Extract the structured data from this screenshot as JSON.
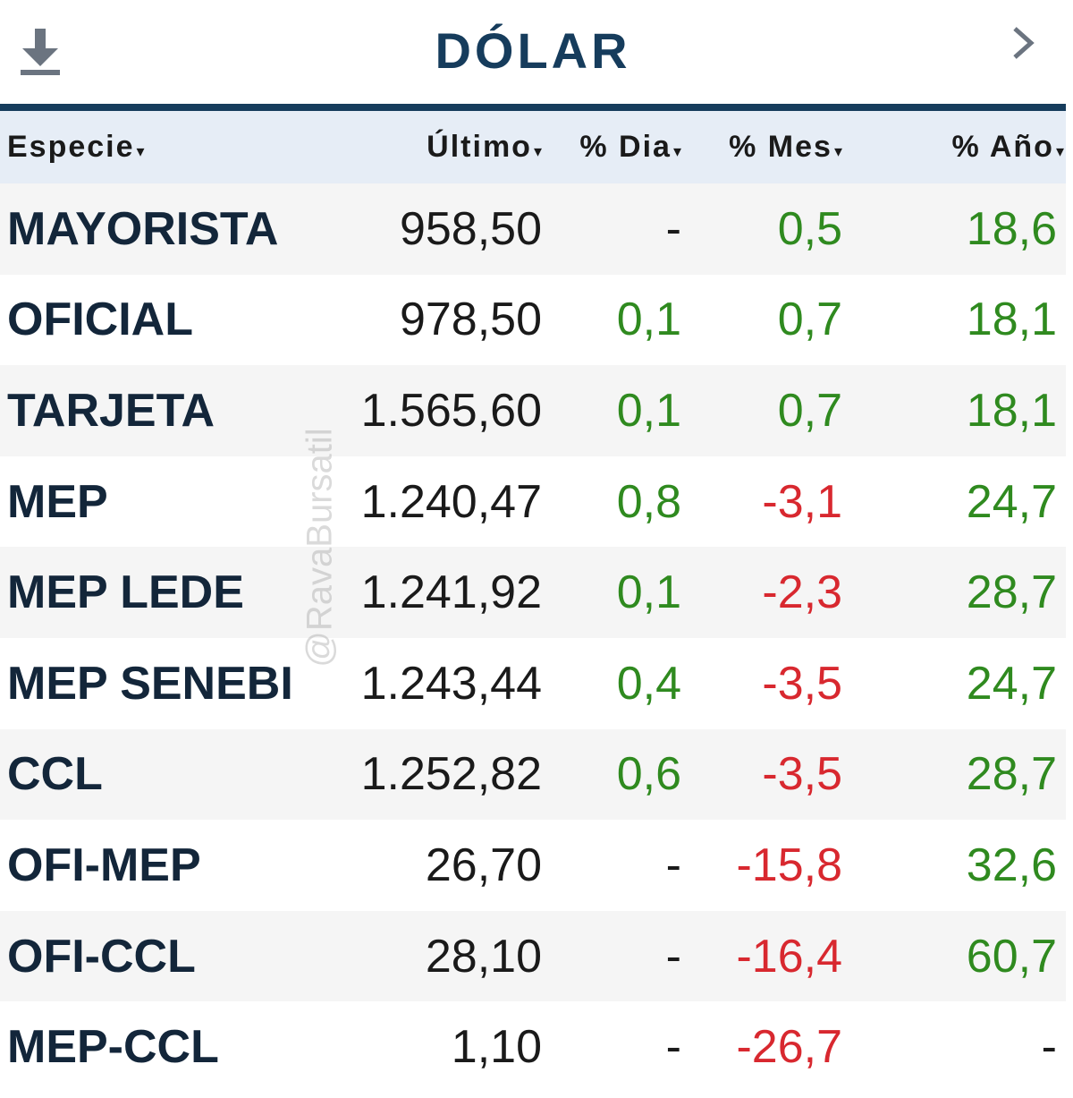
{
  "header": {
    "title": "DÓLAR",
    "download_icon": "download-icon",
    "next_icon": "chevron-right-icon"
  },
  "columns": {
    "especie": "Especie",
    "ultimo": "Último",
    "dia": "% Dia",
    "mes": "% Mes",
    "anio": "% Año",
    "sort_arrow": "▾"
  },
  "rows": [
    {
      "name": "MAYORISTA",
      "last": "958,50",
      "day": "-",
      "month": "0,5",
      "year": "18,6"
    },
    {
      "name": "OFICIAL",
      "last": "978,50",
      "day": "0,1",
      "month": "0,7",
      "year": "18,1"
    },
    {
      "name": "TARJETA",
      "last": "1.565,60",
      "day": "0,1",
      "month": "0,7",
      "year": "18,1"
    },
    {
      "name": "MEP",
      "last": "1.240,47",
      "day": "0,8",
      "month": "-3,1",
      "year": "24,7"
    },
    {
      "name": "MEP LEDE",
      "last": "1.241,92",
      "day": "0,1",
      "month": "-2,3",
      "year": "28,7"
    },
    {
      "name": "MEP SENEBI",
      "last": "1.243,44",
      "day": "0,4",
      "month": "-3,5",
      "year": "24,7"
    },
    {
      "name": "CCL",
      "last": "1.252,82",
      "day": "0,6",
      "month": "-3,5",
      "year": "28,7"
    },
    {
      "name": "OFI-MEP",
      "last": "26,70",
      "day": "-",
      "month": "-15,8",
      "year": "32,6"
    },
    {
      "name": "OFI-CCL",
      "last": "28,10",
      "day": "-",
      "month": "-16,4",
      "year": "60,7"
    },
    {
      "name": "MEP-CCL",
      "last": "1,10",
      "day": "-",
      "month": "-26,7",
      "year": "-"
    }
  ],
  "watermark": "@RavaBursatil",
  "colors": {
    "header_blue": "#163c5c",
    "positive": "#2f8a1f",
    "negative": "#d8282f",
    "header_row_bg": "#e6edf6"
  }
}
